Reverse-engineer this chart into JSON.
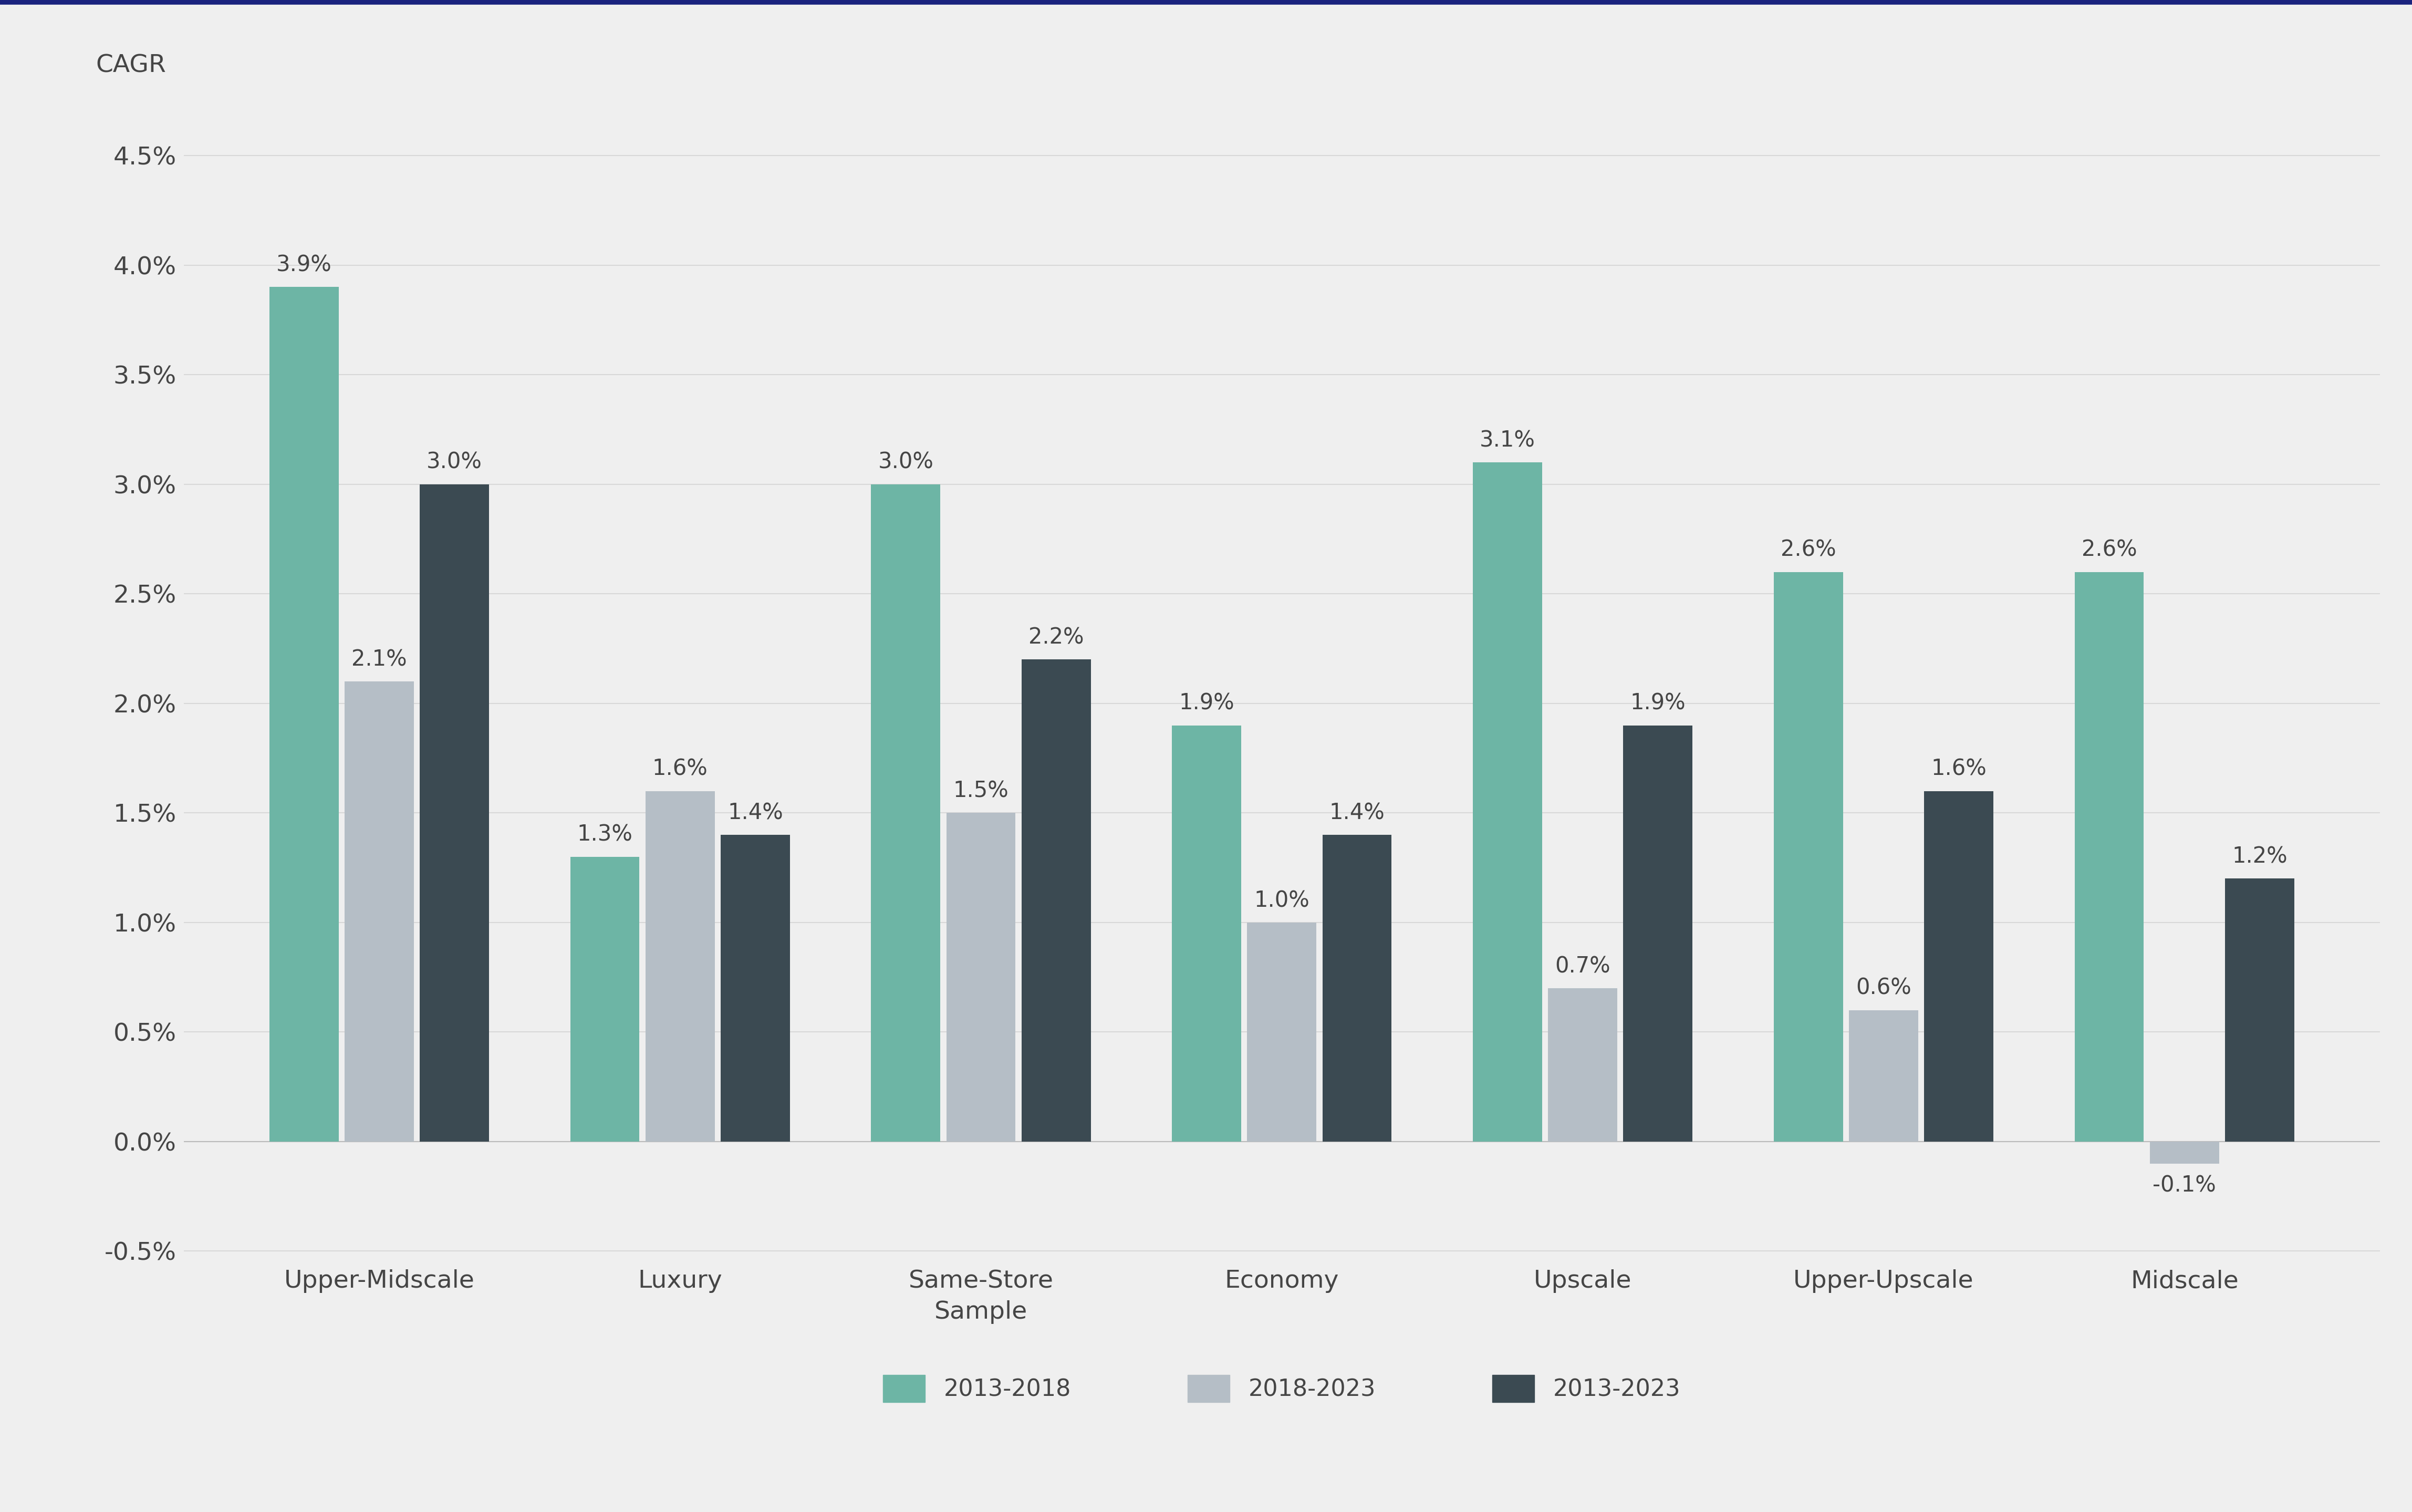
{
  "categories": [
    "Upper-Midscale",
    "Luxury",
    "Same-Store\nSample",
    "Economy",
    "Upscale",
    "Upper-Upscale",
    "Midscale"
  ],
  "series": {
    "2013-2018": [
      3.9,
      1.3,
      3.0,
      1.9,
      3.1,
      2.6,
      2.6
    ],
    "2018-2023": [
      2.1,
      1.6,
      1.5,
      1.0,
      0.7,
      0.6,
      -0.1
    ],
    "2013-2023": [
      3.0,
      1.4,
      2.2,
      1.4,
      1.9,
      1.6,
      1.2
    ]
  },
  "colors": {
    "2013-2018": "#6db5a5",
    "2018-2023": "#b5bec6",
    "2013-2023": "#3b4a52"
  },
  "ylim": [
    -0.55,
    4.7
  ],
  "yticks": [
    -0.5,
    0.0,
    0.5,
    1.0,
    1.5,
    2.0,
    2.5,
    3.0,
    3.5,
    4.0,
    4.5
  ],
  "ylabel": "CAGR",
  "background_color": "#efefef",
  "bar_width": 0.25,
  "tick_fontsize": 34,
  "bar_label_fontsize": 30,
  "legend_fontsize": 32,
  "ylabel_fontsize": 34,
  "top_border_color": "#1a237e",
  "text_color": "#454545",
  "grid_color": "#d8d8d8",
  "zero_line_color": "#bbbbbb"
}
